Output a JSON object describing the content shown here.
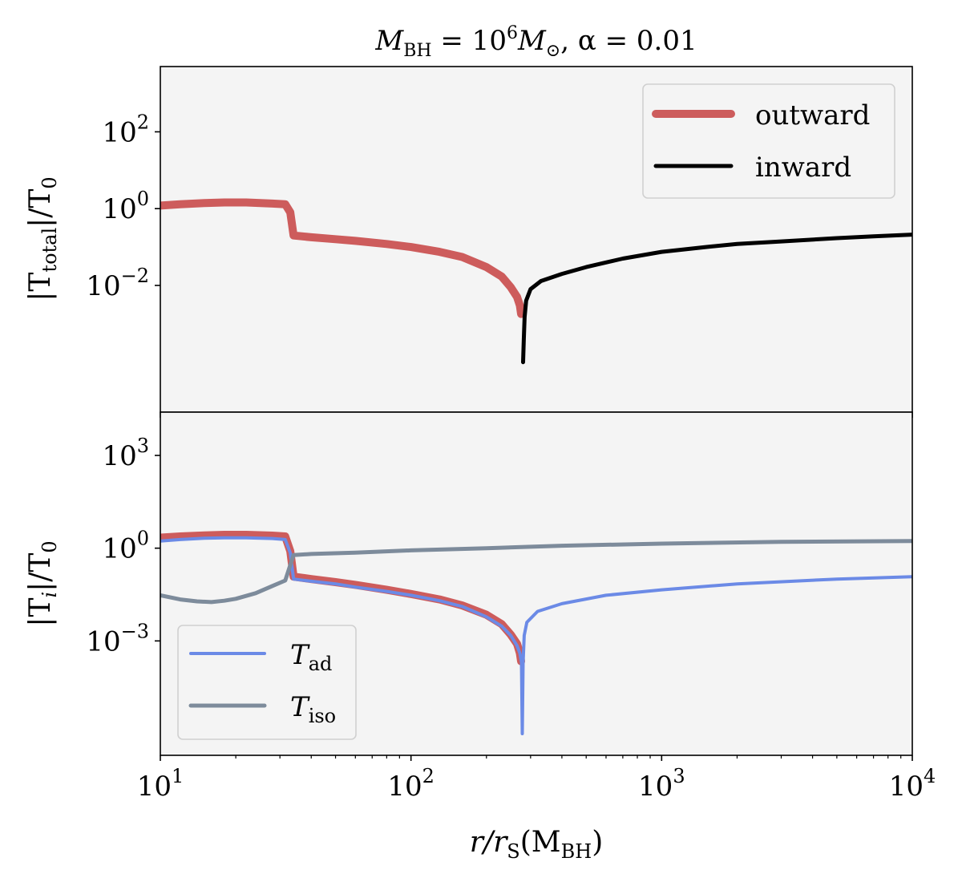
{
  "chart_data": [
    {
      "type": "line",
      "panel": "top",
      "title": "M_BH = 10^6 M_⊙, α = 0.01",
      "ylabel": "|T_total|/T_0",
      "xscale": "log",
      "yscale": "log",
      "xlim": [
        10,
        10000
      ],
      "ylim_log10": [
        -5.3,
        3.7
      ],
      "y_ticks": [
        {
          "base": "10",
          "exp": "2",
          "log10": 2
        },
        {
          "base": "10",
          "exp": "0",
          "log10": 0
        },
        {
          "base": "10",
          "exp": "−2",
          "log10": -2
        }
      ],
      "legend": {
        "location": "top-right"
      },
      "series": [
        {
          "name": "outward",
          "color": "#cd5c5c",
          "width": 10,
          "points": [
            [
              10,
              1.2
            ],
            [
              12,
              1.3
            ],
            [
              15,
              1.4
            ],
            [
              18,
              1.45
            ],
            [
              22,
              1.45
            ],
            [
              28,
              1.35
            ],
            [
              31.5,
              1.3
            ],
            [
              33,
              0.8
            ],
            [
              34,
              0.2
            ],
            [
              40,
              0.18
            ],
            [
              50,
              0.16
            ],
            [
              60,
              0.145
            ],
            [
              80,
              0.12
            ],
            [
              100,
              0.1
            ],
            [
              130,
              0.075
            ],
            [
              160,
              0.055
            ],
            [
              200,
              0.03
            ],
            [
              230,
              0.017
            ],
            [
              250,
              0.009
            ],
            [
              265,
              0.005
            ],
            [
              272,
              0.003
            ],
            [
              275,
              0.0018
            ]
          ]
        },
        {
          "name": "inward",
          "color": "#000000",
          "width": 5,
          "points": [
            [
              280,
              0.0001
            ],
            [
              282,
              0.0004
            ],
            [
              284,
              0.0015
            ],
            [
              288,
              0.004
            ],
            [
              300,
              0.008
            ],
            [
              330,
              0.013
            ],
            [
              400,
              0.02
            ],
            [
              500,
              0.03
            ],
            [
              700,
              0.05
            ],
            [
              1000,
              0.075
            ],
            [
              1500,
              0.1
            ],
            [
              2000,
              0.12
            ],
            [
              3000,
              0.14
            ],
            [
              5000,
              0.17
            ],
            [
              7000,
              0.19
            ],
            [
              10000,
              0.21
            ]
          ]
        }
      ]
    },
    {
      "type": "line",
      "panel": "bottom",
      "xlabel": "r/r_S(M_BH)",
      "ylabel": "|T_i|/T_0",
      "xscale": "log",
      "yscale": "log",
      "xlim": [
        10,
        10000
      ],
      "ylim_log10": [
        -6.7,
        4.4
      ],
      "x_ticks": [
        {
          "base": "10",
          "exp": "1",
          "log10": 1
        },
        {
          "base": "10",
          "exp": "2",
          "log10": 2
        },
        {
          "base": "10",
          "exp": "3",
          "log10": 3
        },
        {
          "base": "10",
          "exp": "4",
          "log10": 4
        }
      ],
      "y_ticks": [
        {
          "base": "10",
          "exp": "3",
          "log10": 3
        },
        {
          "base": "10",
          "exp": "0",
          "log10": 0
        },
        {
          "base": "10",
          "exp": "−3",
          "log10": -3
        }
      ],
      "legend": {
        "location": "bottom-left"
      },
      "series": [
        {
          "name": "outward_overlay",
          "color": "#cd5c5c",
          "width": 10,
          "in_legend": false,
          "points": [
            [
              10,
              2.2
            ],
            [
              12,
              2.4
            ],
            [
              15,
              2.6
            ],
            [
              18,
              2.7
            ],
            [
              22,
              2.7
            ],
            [
              28,
              2.55
            ],
            [
              31.5,
              2.4
            ],
            [
              33,
              0.8
            ],
            [
              34,
              0.12
            ],
            [
              40,
              0.1
            ],
            [
              50,
              0.08
            ],
            [
              60,
              0.065
            ],
            [
              80,
              0.045
            ],
            [
              100,
              0.033
            ],
            [
              130,
              0.022
            ],
            [
              160,
              0.014
            ],
            [
              200,
              0.007
            ],
            [
              230,
              0.0035
            ],
            [
              250,
              0.0016
            ],
            [
              265,
              0.0008
            ],
            [
              272,
              0.0004
            ],
            [
              275,
              0.00022
            ]
          ]
        },
        {
          "name": "T_ad",
          "label_base": "T",
          "label_sub": "ad",
          "color": "#6b8ae6",
          "width": 4,
          "points": [
            [
              10,
              1.7
            ],
            [
              12,
              1.9
            ],
            [
              15,
              2.1
            ],
            [
              18,
              2.15
            ],
            [
              22,
              2.15
            ],
            [
              28,
              2.05
            ],
            [
              31.5,
              1.9
            ],
            [
              33,
              0.7
            ],
            [
              34,
              0.1
            ],
            [
              40,
              0.085
            ],
            [
              50,
              0.07
            ],
            [
              60,
              0.055
            ],
            [
              80,
              0.04
            ],
            [
              100,
              0.03
            ],
            [
              130,
              0.02
            ],
            [
              160,
              0.013
            ],
            [
              200,
              0.006
            ],
            [
              230,
              0.003
            ],
            [
              250,
              0.0015
            ],
            [
              265,
              0.0007
            ],
            [
              272,
              0.0004
            ],
            [
              276,
              0.0002
            ],
            [
              278,
              1e-06
            ],
            [
              280,
              0.0002
            ],
            [
              283,
              0.0015
            ],
            [
              290,
              0.004
            ],
            [
              320,
              0.009
            ],
            [
              400,
              0.016
            ],
            [
              600,
              0.03
            ],
            [
              1000,
              0.045
            ],
            [
              2000,
              0.07
            ],
            [
              5000,
              0.1
            ],
            [
              10000,
              0.12
            ]
          ]
        },
        {
          "name": "T_iso",
          "label_base": "T",
          "label_sub": "iso",
          "color": "#7d8b9b",
          "width": 5,
          "points": [
            [
              10,
              0.03
            ],
            [
              12,
              0.022
            ],
            [
              14,
              0.019
            ],
            [
              16,
              0.018
            ],
            [
              18,
              0.02
            ],
            [
              20,
              0.023
            ],
            [
              24,
              0.035
            ],
            [
              28,
              0.06
            ],
            [
              31.5,
              0.09
            ],
            [
              34,
              0.6
            ],
            [
              40,
              0.65
            ],
            [
              60,
              0.72
            ],
            [
              100,
              0.85
            ],
            [
              200,
              1.0
            ],
            [
              400,
              1.2
            ],
            [
              1000,
              1.4
            ],
            [
              3000,
              1.6
            ],
            [
              10000,
              1.7
            ]
          ]
        }
      ]
    }
  ],
  "labels": {
    "title": "M",
    "title_sub": "BH",
    "title_mid": " = 10",
    "title_exp": "6",
    "title_m2": "M",
    "title_sun": "⊙",
    "title_end": ", α = 0.01",
    "top_ylabel_a": "|T",
    "top_ylabel_sub": "total",
    "top_ylabel_b": "|/T",
    "top_ylabel_sub2": "0",
    "bot_ylabel_a": "|T",
    "bot_ylabel_sub": "i",
    "bot_ylabel_b": "|/T",
    "bot_ylabel_sub2": "0",
    "xlabel_a": "r/r",
    "xlabel_sub": "S",
    "xlabel_b": "(M",
    "xlabel_sub2": "BH",
    "xlabel_c": ")",
    "legend_top": [
      "outward",
      "inward"
    ]
  },
  "colors": {
    "axes_bg": "#f4f4f4",
    "legend_bg": "#f4f4f4",
    "legend_border": "#d0d0d0"
  }
}
